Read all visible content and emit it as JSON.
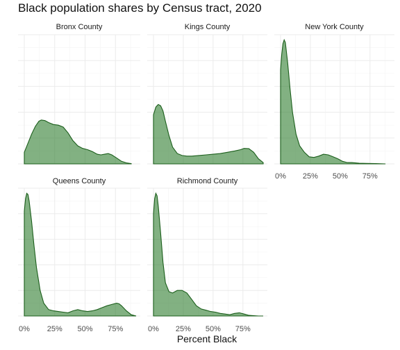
{
  "chart_data": {
    "type": "area",
    "title": "Black population shares by Census tract, 2020",
    "xlabel": "Percent Black",
    "ylabel": "",
    "x_ticks": [
      "0%",
      "25%",
      "50%",
      "75%"
    ],
    "x_tick_values": [
      0,
      25,
      50,
      75
    ],
    "xlim": [
      0,
      92
    ],
    "ylim": [
      0,
      1
    ],
    "grid": true,
    "panels": [
      {
        "name": "Bronx County",
        "x": [
          0,
          3,
          6,
          9,
          12,
          14,
          17,
          20,
          24,
          28,
          32,
          36,
          40,
          44,
          48,
          52,
          56,
          60,
          63,
          66,
          69,
          72,
          76,
          80,
          84,
          88
        ],
        "y": [
          0.09,
          0.16,
          0.23,
          0.29,
          0.33,
          0.34,
          0.335,
          0.32,
          0.305,
          0.3,
          0.285,
          0.24,
          0.18,
          0.14,
          0.12,
          0.11,
          0.095,
          0.075,
          0.07,
          0.075,
          0.08,
          0.07,
          0.045,
          0.02,
          0.008,
          0.002
        ]
      },
      {
        "name": "Kings County",
        "x": [
          0,
          2,
          4,
          6,
          8,
          10,
          13,
          16,
          20,
          24,
          28,
          32,
          38,
          44,
          50,
          56,
          62,
          68,
          73,
          76,
          80,
          84,
          88,
          92
        ],
        "y": [
          0.38,
          0.44,
          0.46,
          0.45,
          0.41,
          0.33,
          0.22,
          0.13,
          0.08,
          0.065,
          0.06,
          0.06,
          0.065,
          0.07,
          0.075,
          0.08,
          0.09,
          0.1,
          0.11,
          0.12,
          0.118,
          0.09,
          0.04,
          0.01
        ]
      },
      {
        "name": "New York County",
        "x": [
          0,
          1,
          2,
          3,
          4,
          6,
          8,
          10,
          13,
          16,
          20,
          24,
          28,
          32,
          36,
          40,
          44,
          48,
          52,
          56,
          60,
          66,
          72,
          80,
          88
        ],
        "y": [
          0.73,
          0.85,
          0.93,
          0.96,
          0.94,
          0.78,
          0.58,
          0.4,
          0.23,
          0.14,
          0.09,
          0.055,
          0.05,
          0.06,
          0.075,
          0.07,
          0.055,
          0.04,
          0.02,
          0.01,
          0.01,
          0.005,
          0.004,
          0.002,
          0.0
        ]
      },
      {
        "name": "Queens County",
        "x": [
          0,
          1,
          2,
          3,
          4,
          6,
          8,
          10,
          13,
          16,
          20,
          24,
          28,
          32,
          36,
          40,
          44,
          48,
          52,
          56,
          60,
          64,
          68,
          72,
          76,
          78,
          80,
          84,
          88,
          92
        ],
        "y": [
          0.82,
          0.92,
          0.96,
          0.95,
          0.9,
          0.74,
          0.55,
          0.38,
          0.2,
          0.1,
          0.05,
          0.04,
          0.035,
          0.03,
          0.025,
          0.04,
          0.05,
          0.04,
          0.035,
          0.04,
          0.05,
          0.065,
          0.08,
          0.09,
          0.1,
          0.095,
          0.08,
          0.04,
          0.01,
          0.0
        ]
      },
      {
        "name": "Richmond County",
        "x": [
          0,
          1,
          2,
          3,
          4,
          6,
          8,
          10,
          13,
          16,
          20,
          24,
          28,
          32,
          36,
          40,
          44,
          48,
          52,
          56,
          60,
          64,
          68,
          72,
          76,
          80,
          84,
          88,
          92
        ],
        "y": [
          0.8,
          0.92,
          0.96,
          0.94,
          0.86,
          0.65,
          0.42,
          0.26,
          0.19,
          0.18,
          0.2,
          0.2,
          0.18,
          0.13,
          0.08,
          0.055,
          0.045,
          0.035,
          0.03,
          0.02,
          0.015,
          0.01,
          0.02,
          0.025,
          0.015,
          0.005,
          0.002,
          0.0,
          0.0
        ]
      }
    ]
  }
}
